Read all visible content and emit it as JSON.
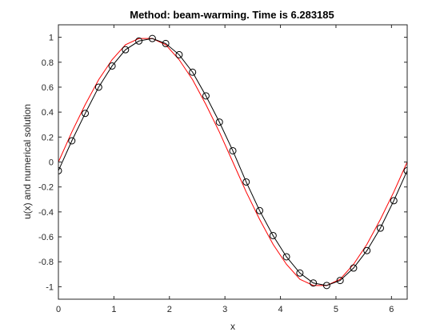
{
  "chart_data": {
    "type": "line",
    "title": "Method: beam-warming. Time is 6.283185",
    "xlabel": "x",
    "ylabel": "u(x) and numerical solution",
    "xlim": [
      0,
      6.283185
    ],
    "ylim": [
      -1.1,
      1.1
    ],
    "xticks": [
      0,
      1,
      2,
      3,
      4,
      5,
      6
    ],
    "xtick_labels": [
      "0",
      "1",
      "2",
      "3",
      "4",
      "5",
      "6"
    ],
    "yticks": [
      -1,
      -0.8,
      -0.6,
      -0.4,
      -0.2,
      0,
      0.2,
      0.4,
      0.6,
      0.8,
      1
    ],
    "ytick_labels": [
      "-1",
      "-0.8",
      "-0.6",
      "-0.4",
      "-0.2",
      "0",
      "0.2",
      "0.4",
      "0.6",
      "0.8",
      "1"
    ],
    "grid": false,
    "legend": "none",
    "colors": {
      "exact": "#ff0000",
      "numerical": "#000000",
      "axes": "#262626"
    },
    "series": [
      {
        "x": [
          0,
          0.242,
          0.483,
          0.725,
          0.967,
          1.208,
          1.45,
          1.692,
          1.933,
          2.175,
          2.417,
          2.658,
          2.9,
          3.142,
          3.383,
          3.625,
          3.867,
          4.108,
          4.35,
          4.592,
          4.833,
          5.075,
          5.317,
          5.558,
          5.8,
          6.042,
          6.283
        ],
        "y": [
          0.0,
          0.24,
          0.46,
          0.66,
          0.82,
          0.94,
          0.99,
          0.99,
          0.94,
          0.82,
          0.66,
          0.46,
          0.24,
          0.0,
          -0.24,
          -0.46,
          -0.66,
          -0.82,
          -0.94,
          -0.99,
          -0.99,
          -0.94,
          -0.82,
          -0.66,
          -0.46,
          -0.24,
          0.0
        ],
        "style": "line",
        "color": "#ff0000"
      },
      {
        "x": [
          0,
          0.242,
          0.483,
          0.725,
          0.967,
          1.208,
          1.45,
          1.692,
          1.933,
          2.175,
          2.417,
          2.658,
          2.9,
          3.142,
          3.383,
          3.625,
          3.867,
          4.108,
          4.35,
          4.592,
          4.833,
          5.075,
          5.317,
          5.558,
          5.8,
          6.042,
          6.283
        ],
        "y": [
          -0.07,
          0.17,
          0.39,
          0.6,
          0.77,
          0.9,
          0.97,
          0.99,
          0.95,
          0.86,
          0.72,
          0.53,
          0.32,
          0.09,
          -0.16,
          -0.39,
          -0.59,
          -0.76,
          -0.89,
          -0.97,
          -0.99,
          -0.95,
          -0.85,
          -0.71,
          -0.53,
          -0.31,
          -0.07
        ],
        "style": "line-circle-markers",
        "color": "#000000"
      }
    ]
  }
}
